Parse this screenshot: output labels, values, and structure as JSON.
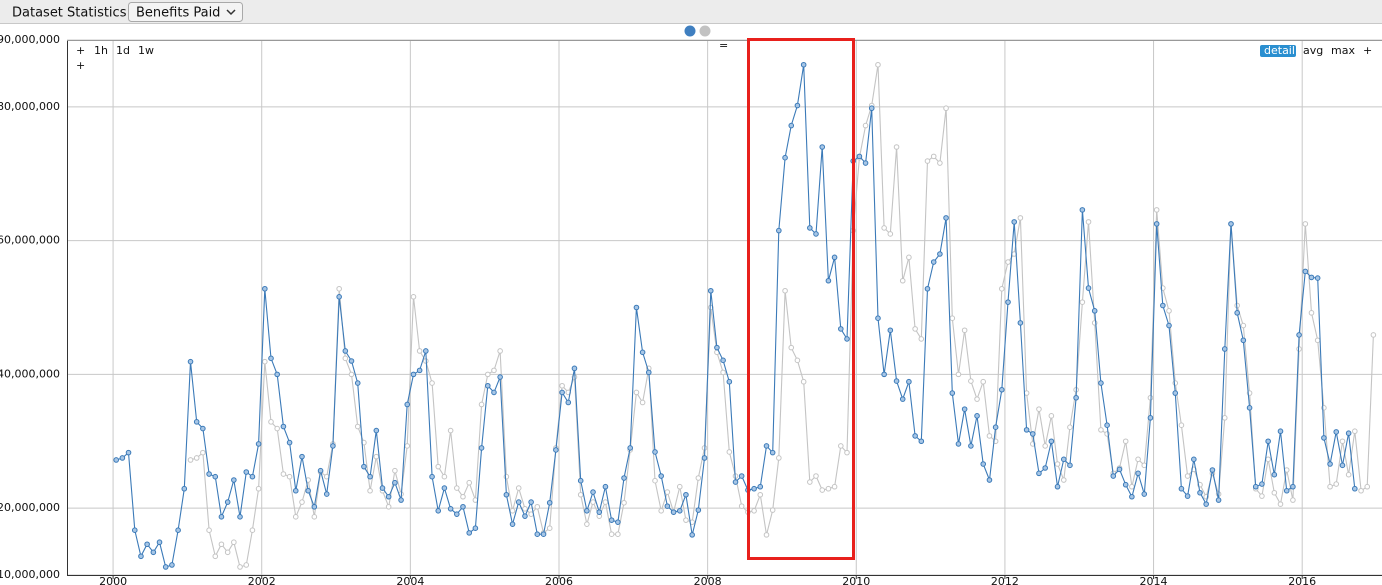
{
  "ui": {
    "tab_label": "Dataset Statistics",
    "dropdown": "Benefits Paid",
    "left_controls": [
      "+",
      "1h",
      "1d",
      "1w",
      "+"
    ],
    "center_control": "=",
    "right_controls": [
      "detail",
      "avg",
      "max",
      "+"
    ]
  },
  "chart_data": {
    "type": "line",
    "x": [
      2000.042,
      2000.125,
      2000.208,
      2000.292,
      2000.375,
      2000.458,
      2000.542,
      2000.625,
      2000.708,
      2000.792,
      2000.875,
      2000.958,
      2001.042,
      2001.125,
      2001.208,
      2001.292,
      2001.375,
      2001.458,
      2001.542,
      2001.625,
      2001.708,
      2001.792,
      2001.875,
      2001.958,
      2002.042,
      2002.125,
      2002.208,
      2002.292,
      2002.375,
      2002.458,
      2002.542,
      2002.625,
      2002.708,
      2002.792,
      2002.875,
      2002.958,
      2003.042,
      2003.125,
      2003.208,
      2003.292,
      2003.375,
      2003.458,
      2003.542,
      2003.625,
      2003.708,
      2003.792,
      2003.875,
      2003.958,
      2004.042,
      2004.125,
      2004.208,
      2004.292,
      2004.375,
      2004.458,
      2004.542,
      2004.625,
      2004.708,
      2004.792,
      2004.875,
      2004.958,
      2005.042,
      2005.125,
      2005.208,
      2005.292,
      2005.375,
      2005.458,
      2005.542,
      2005.625,
      2005.708,
      2005.792,
      2005.875,
      2005.958,
      2006.042,
      2006.125,
      2006.208,
      2006.292,
      2006.375,
      2006.458,
      2006.542,
      2006.625,
      2006.708,
      2006.792,
      2006.875,
      2006.958,
      2007.042,
      2007.125,
      2007.208,
      2007.292,
      2007.375,
      2007.458,
      2007.542,
      2007.625,
      2007.708,
      2007.792,
      2007.875,
      2007.958,
      2008.042,
      2008.125,
      2008.208,
      2008.292,
      2008.375,
      2008.458,
      2008.542,
      2008.625,
      2008.708,
      2008.792,
      2008.875,
      2008.958,
      2009.042,
      2009.125,
      2009.208,
      2009.292,
      2009.375,
      2009.458,
      2009.542,
      2009.625,
      2009.708,
      2009.792,
      2009.875,
      2009.958,
      2010.042,
      2010.125,
      2010.208,
      2010.292,
      2010.375,
      2010.458,
      2010.542,
      2010.625,
      2010.708,
      2010.792,
      2010.875,
      2010.958,
      2011.042,
      2011.125,
      2011.208,
      2011.292,
      2011.375,
      2011.458,
      2011.542,
      2011.625,
      2011.708,
      2011.792,
      2011.875,
      2011.958,
      2012.042,
      2012.125,
      2012.208,
      2012.292,
      2012.375,
      2012.458,
      2012.542,
      2012.625,
      2012.708,
      2012.792,
      2012.875,
      2012.958,
      2013.042,
      2013.125,
      2013.208,
      2013.292,
      2013.375,
      2013.458,
      2013.542,
      2013.625,
      2013.708,
      2013.792,
      2013.875,
      2013.958,
      2014.042,
      2014.125,
      2014.208,
      2014.292,
      2014.375,
      2014.458,
      2014.542,
      2014.625,
      2014.708,
      2014.792,
      2014.875,
      2014.958,
      2015.042,
      2015.125,
      2015.208,
      2015.292,
      2015.375,
      2015.458,
      2015.542,
      2015.625,
      2015.708,
      2015.792,
      2015.875,
      2015.958,
      2016.042,
      2016.125,
      2016.208,
      2016.292,
      2016.375,
      2016.458,
      2016.542,
      2016.625,
      2016.708,
      2016.792,
      2016.875,
      2016.958
    ],
    "series": [
      {
        "color": "#c4c4c4",
        "marker_fill": "#ffffff",
        "values": [
          null,
          null,
          null,
          null,
          null,
          null,
          null,
          null,
          null,
          null,
          null,
          null,
          27200000,
          27500000,
          28300000,
          16700000,
          12800000,
          14600000,
          13400000,
          14900000,
          11200000,
          11500000,
          16700000,
          22900000,
          41900000,
          32900000,
          31900000,
          25100000,
          24700000,
          18700000,
          20900000,
          24200000,
          18700000,
          25400000,
          24700000,
          29600000,
          52800000,
          42400000,
          40000000,
          32200000,
          29800000,
          22600000,
          27700000,
          22600000,
          20200000,
          25600000,
          22100000,
          29300000,
          51600000,
          43500000,
          42000000,
          38700000,
          26200000,
          24700000,
          31600000,
          23000000,
          21700000,
          23800000,
          21200000,
          35500000,
          40000000,
          40600000,
          43500000,
          24700000,
          19600000,
          23000000,
          19900000,
          19100000,
          20200000,
          16300000,
          17000000,
          29000000,
          38300000,
          37300000,
          39600000,
          22000000,
          17600000,
          20900000,
          18800000,
          20900000,
          16100000,
          16100000,
          20800000,
          28700000,
          37300000,
          35800000,
          40900000,
          24100000,
          19600000,
          22400000,
          19400000,
          23200000,
          18200000,
          17900000,
          24500000,
          29000000,
          50000000,
          43300000,
          40300000,
          28400000,
          24800000,
          20300000,
          19400000,
          19600000,
          22000000,
          16000000,
          19700000,
          27500000,
          52500000,
          44000000,
          42100000,
          38900000,
          23900000,
          24800000,
          22700000,
          22900000,
          23200000,
          29300000,
          28300000,
          61500000,
          72400000,
          77200000,
          80200000,
          86300000,
          61900000,
          61000000,
          74000000,
          54000000,
          57500000,
          46800000,
          45300000,
          71900000,
          72600000,
          71600000,
          79800000,
          48400000,
          40000000,
          46600000,
          39000000,
          36300000,
          38900000,
          30800000,
          30000000,
          52800000,
          56800000,
          58000000,
          63400000,
          37200000,
          29600000,
          34800000,
          29300000,
          33800000,
          26600000,
          24200000,
          32100000,
          37700000,
          50800000,
          62800000,
          47700000,
          31700000,
          31100000,
          25200000,
          26000000,
          30000000,
          23200000,
          27300000,
          26400000,
          36500000,
          64600000,
          52900000,
          49500000,
          38700000,
          32400000,
          24800000,
          25800000,
          23500000,
          21700000,
          25200000,
          22100000,
          33500000,
          62500000,
          50300000,
          47300000,
          37200000,
          22900000,
          21800000,
          27300000,
          22300000,
          20600000,
          25700000,
          21200000,
          43800000,
          62500000,
          49200000,
          45100000,
          35000000,
          23200000,
          23600000,
          30000000,
          25000000,
          31500000,
          22600000,
          23200000,
          45900000
        ]
      },
      {
        "color": "#3b7ab8",
        "marker_fill": "#a7c6e6",
        "values": [
          27200000,
          27500000,
          28300000,
          16700000,
          12800000,
          14600000,
          13400000,
          14900000,
          11200000,
          11500000,
          16700000,
          22900000,
          41900000,
          32900000,
          31900000,
          25100000,
          24700000,
          18700000,
          20900000,
          24200000,
          18700000,
          25400000,
          24700000,
          29600000,
          52800000,
          42400000,
          40000000,
          32200000,
          29800000,
          22600000,
          27700000,
          22600000,
          20200000,
          25600000,
          22100000,
          29300000,
          51600000,
          43500000,
          42000000,
          38700000,
          26200000,
          24700000,
          31600000,
          23000000,
          21700000,
          23800000,
          21200000,
          35500000,
          40000000,
          40600000,
          43500000,
          24700000,
          19600000,
          23000000,
          19900000,
          19100000,
          20200000,
          16300000,
          17000000,
          29000000,
          38300000,
          37300000,
          39600000,
          22000000,
          17600000,
          20900000,
          18800000,
          20900000,
          16100000,
          16100000,
          20800000,
          28700000,
          37300000,
          35800000,
          40900000,
          24100000,
          19600000,
          22400000,
          19400000,
          23200000,
          18200000,
          17900000,
          24500000,
          29000000,
          50000000,
          43300000,
          40300000,
          28400000,
          24800000,
          20300000,
          19400000,
          19600000,
          22000000,
          16000000,
          19700000,
          27500000,
          52500000,
          44000000,
          42100000,
          38900000,
          23900000,
          24800000,
          22700000,
          22900000,
          23200000,
          29300000,
          28300000,
          61500000,
          72400000,
          77200000,
          80200000,
          86300000,
          61900000,
          61000000,
          74000000,
          54000000,
          57500000,
          46800000,
          45300000,
          71900000,
          72600000,
          71600000,
          79800000,
          48400000,
          40000000,
          46600000,
          39000000,
          36300000,
          38900000,
          30800000,
          30000000,
          52800000,
          56800000,
          58000000,
          63400000,
          37200000,
          29600000,
          34800000,
          29300000,
          33800000,
          26600000,
          24200000,
          32100000,
          37700000,
          50800000,
          62800000,
          47700000,
          31700000,
          31100000,
          25200000,
          26000000,
          30000000,
          23200000,
          27300000,
          26400000,
          36500000,
          64600000,
          52900000,
          49500000,
          38700000,
          32400000,
          24800000,
          25800000,
          23500000,
          21700000,
          25200000,
          22100000,
          33500000,
          62500000,
          50300000,
          47300000,
          37200000,
          22900000,
          21800000,
          27300000,
          22300000,
          20600000,
          25700000,
          21200000,
          43800000,
          62500000,
          49200000,
          45100000,
          35000000,
          23200000,
          23600000,
          30000000,
          25000000,
          31500000,
          22600000,
          23200000,
          45900000,
          55400000,
          54500000,
          54400000,
          30500000,
          26600000,
          31400000,
          26400000,
          31200000,
          22900000,
          null,
          null,
          null
        ]
      }
    ],
    "xlim": [
      1999.38,
      2017.02
    ],
    "xticks": [
      2000,
      2002,
      2004,
      2006,
      2008,
      2010,
      2012,
      2014,
      2016
    ],
    "ylim": [
      10000000,
      90000000
    ],
    "yticks": [
      {
        "value": 10000000,
        "label": "10,000,000"
      },
      {
        "value": 20000000,
        "label": "20,000,000"
      },
      {
        "value": 40000000,
        "label": "40,000,000"
      },
      {
        "value": 60000000,
        "label": "60,000,000"
      },
      {
        "value": 80000000,
        "label": "80,000,000"
      },
      {
        "value": 90000000,
        "label": "90,000,000"
      }
    ],
    "grid": true
  }
}
